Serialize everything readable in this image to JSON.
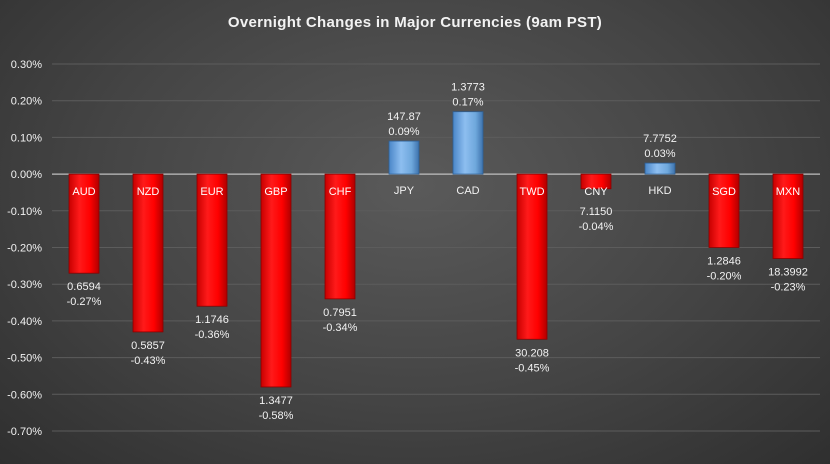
{
  "chart_data": {
    "type": "bar",
    "title": "Overnight Changes in Major Currencies (9am PST)",
    "xlabel": "",
    "ylabel": "",
    "ylim": [
      -0.7,
      0.3
    ],
    "yticks": [
      "0.30%",
      "0.20%",
      "0.10%",
      "0.00%",
      "-0.10%",
      "-0.20%",
      "-0.30%",
      "-0.40%",
      "-0.50%",
      "-0.60%",
      "-0.70%"
    ],
    "ytick_values": [
      0.3,
      0.2,
      0.1,
      0.0,
      -0.1,
      -0.2,
      -0.3,
      -0.4,
      -0.5,
      -0.6,
      -0.7
    ],
    "grid": true,
    "legend": "none",
    "categories": [
      "AUD",
      "NZD",
      "EUR",
      "GBP",
      "CHF",
      "JPY",
      "CAD",
      "TWD",
      "CNY",
      "HKD",
      "SGD",
      "MXN"
    ],
    "values": [
      -0.27,
      -0.43,
      -0.36,
      -0.58,
      -0.34,
      0.09,
      0.17,
      -0.45,
      -0.04,
      0.03,
      -0.2,
      -0.23
    ],
    "rates": [
      "0.6594",
      "0.5857",
      "1.1746",
      "1.3477",
      "0.7951",
      "147.87",
      "1.3773",
      "30.208",
      "7.1150",
      "7.7752",
      "1.2846",
      "18.3992"
    ],
    "pct_labels": [
      "-0.27%",
      "-0.43%",
      "-0.36%",
      "-0.58%",
      "-0.34%",
      "0.09%",
      "0.17%",
      "-0.45%",
      "-0.04%",
      "0.03%",
      "-0.20%",
      "-0.23%"
    ],
    "colors": {
      "negative": "#ff0000",
      "positive": "#6fa8dc",
      "background": "#404040",
      "grid": "#5c5c5c",
      "text": "#f2f2f2"
    }
  }
}
